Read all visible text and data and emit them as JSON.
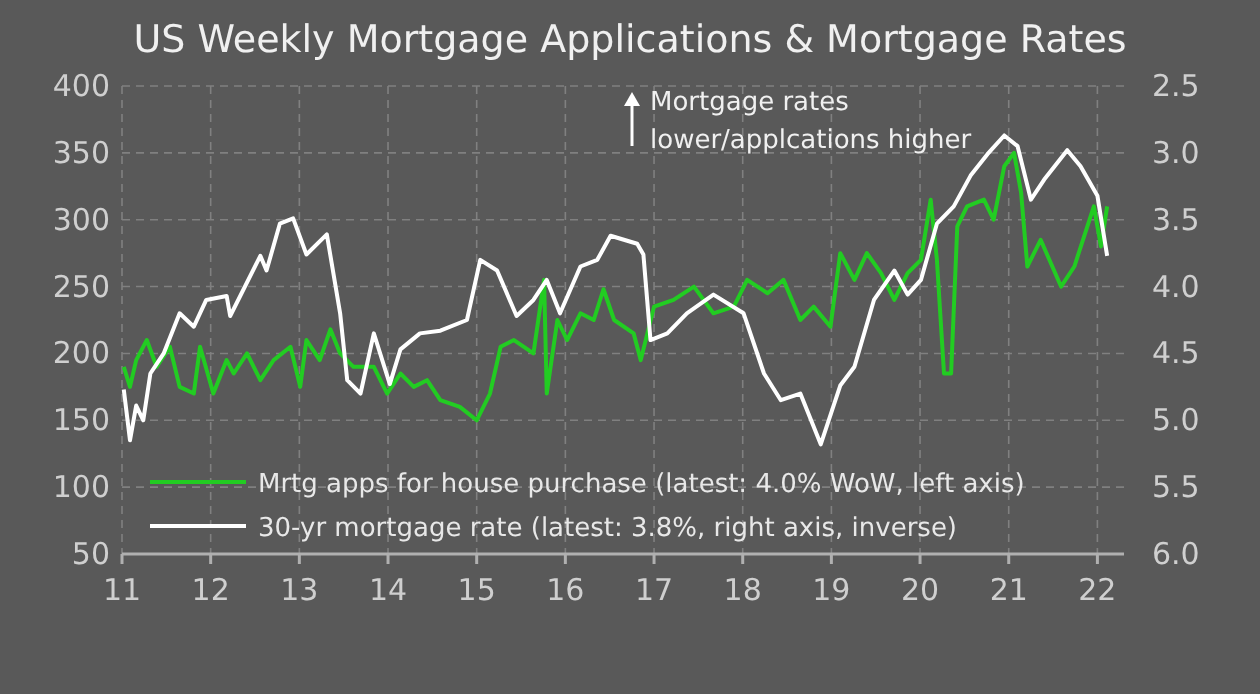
{
  "chart_data": {
    "type": "line",
    "title": "US Weekly Mortgage Applications & Mortgage Rates",
    "annotations": [
      "Mortgage rates lower/applcations higher"
    ],
    "xlim": [
      11,
      22.3
    ],
    "xticks": [
      11,
      12,
      13,
      14,
      15,
      16,
      17,
      18,
      19,
      20,
      21,
      22
    ],
    "ylim": [
      50,
      400
    ],
    "yticks": [
      50,
      100,
      150,
      200,
      250,
      300,
      350,
      400
    ],
    "y2lim": [
      6.0,
      2.5
    ],
    "y2ticks": [
      {
        "value": 6.0,
        "label": "6.0"
      },
      {
        "value": 5.5,
        "label": "5.5"
      },
      {
        "value": 5.0,
        "label": "5.0"
      },
      {
        "value": 4.5,
        "label": "4.5"
      },
      {
        "value": 4.0,
        "label": "4.0"
      },
      {
        "value": 3.5,
        "label": "3.5"
      },
      {
        "value": 3.0,
        "label": "3.0"
      },
      {
        "value": 2.5,
        "label": "2.5"
      }
    ],
    "grid": true,
    "legend": "bottom left",
    "line_style": "solid",
    "marker": "none",
    "series": [
      {
        "name": "Mrtg apps for house purchase (latest: 4.0% WoW, left axis)",
        "color": "#22cc22",
        "x": [
          11.02,
          11.09,
          11.16,
          11.28,
          11.39,
          11.54,
          11.65,
          11.81,
          11.88,
          12.03,
          12.18,
          12.26,
          12.41,
          12.56,
          12.71,
          12.9,
          13.01,
          13.08,
          13.23,
          13.35,
          13.46,
          13.61,
          13.84,
          13.99,
          14.14,
          14.29,
          14.44,
          14.59,
          14.81,
          15.0,
          15.15,
          15.27,
          15.42,
          15.64,
          15.76,
          15.79,
          15.91,
          16.02,
          16.17,
          16.32,
          16.43,
          16.55,
          16.77,
          16.85,
          17.0,
          17.22,
          17.45,
          17.67,
          17.9,
          18.05,
          18.28,
          18.46,
          18.65,
          18.8,
          18.99,
          19.1,
          19.26,
          19.4,
          19.56,
          19.71,
          19.86,
          20.01,
          20.12,
          20.19,
          20.27,
          20.35,
          20.42,
          20.53,
          20.72,
          20.83,
          20.95,
          21.06,
          21.14,
          21.21,
          21.36,
          21.59,
          21.74,
          21.96,
          22.04,
          22.11
        ],
        "values": [
          190,
          175,
          195,
          210,
          190,
          205,
          175,
          170,
          205,
          170,
          195,
          185,
          200,
          180,
          195,
          205,
          175,
          210,
          195,
          218,
          200,
          190,
          190,
          170,
          185,
          175,
          180,
          165,
          160,
          150,
          170,
          205,
          210,
          200,
          255,
          170,
          225,
          210,
          230,
          225,
          248,
          225,
          215,
          195,
          235,
          240,
          250,
          230,
          235,
          255,
          245,
          255,
          225,
          235,
          220,
          275,
          255,
          275,
          260,
          240,
          260,
          270,
          315,
          270,
          185,
          185,
          295,
          310,
          315,
          300,
          340,
          350,
          320,
          265,
          285,
          250,
          265,
          310,
          280,
          310
        ]
      },
      {
        "name": "30-yr mortgage rate (latest: 3.8%, right axis, inverse)",
        "color": "#ffffff",
        "axis": "y2",
        "x": [
          11.02,
          11.09,
          11.16,
          11.24,
          11.32,
          11.47,
          11.65,
          11.81,
          11.95,
          12.18,
          12.22,
          12.56,
          12.63,
          12.78,
          12.93,
          13.08,
          13.31,
          13.46,
          13.54,
          13.69,
          13.84,
          14.02,
          14.14,
          14.36,
          14.59,
          14.89,
          15.04,
          15.23,
          15.45,
          15.64,
          15.79,
          15.94,
          16.17,
          16.36,
          16.51,
          16.81,
          16.88,
          16.96,
          17.15,
          17.37,
          17.67,
          18.01,
          18.24,
          18.43,
          18.65,
          18.88,
          19.1,
          19.26,
          19.48,
          19.71,
          19.86,
          20.01,
          20.19,
          20.38,
          20.57,
          20.76,
          20.95,
          21.1,
          21.25,
          21.4,
          21.66,
          21.81,
          22.0,
          22.11
        ],
        "values": [
          4.77,
          5.15,
          4.89,
          5.0,
          4.65,
          4.5,
          4.2,
          4.3,
          4.1,
          4.07,
          4.22,
          3.77,
          3.88,
          3.53,
          3.49,
          3.76,
          3.61,
          4.2,
          4.7,
          4.8,
          4.35,
          4.73,
          4.47,
          4.35,
          4.33,
          4.25,
          3.8,
          3.88,
          4.22,
          4.1,
          3.95,
          4.2,
          3.85,
          3.8,
          3.62,
          3.68,
          3.76,
          4.4,
          4.35,
          4.2,
          4.06,
          4.2,
          4.65,
          4.85,
          4.8,
          5.18,
          4.74,
          4.6,
          4.1,
          3.88,
          4.06,
          3.95,
          3.53,
          3.4,
          3.17,
          3.01,
          2.87,
          2.95,
          3.35,
          3.2,
          2.98,
          3.1,
          3.32,
          3.77
        ]
      }
    ]
  }
}
